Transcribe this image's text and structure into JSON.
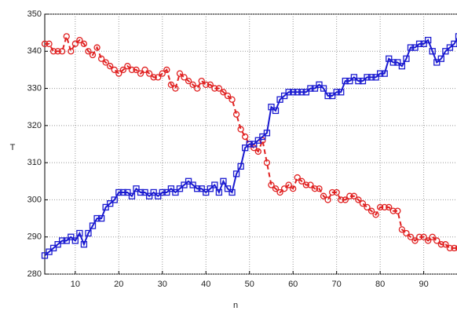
{
  "chart_data": {
    "type": "line",
    "xlabel": "n",
    "ylabel": "T",
    "x": [
      3,
      4,
      5,
      6,
      7,
      8,
      9,
      10,
      11,
      12,
      13,
      14,
      15,
      16,
      17,
      18,
      19,
      20,
      21,
      22,
      23,
      24,
      25,
      26,
      27,
      28,
      29,
      30,
      31,
      32,
      33,
      34,
      35,
      36,
      37,
      38,
      39,
      40,
      41,
      42,
      43,
      44,
      45,
      46,
      47,
      48,
      49,
      50,
      51,
      52,
      53,
      54,
      55,
      56,
      57,
      58,
      59,
      60,
      61,
      62,
      63,
      64,
      65,
      66,
      67,
      68,
      69,
      70,
      71,
      72,
      73,
      74,
      75,
      76,
      77,
      78,
      79,
      80,
      81,
      82,
      83,
      84,
      85,
      86,
      87,
      88,
      89,
      90,
      91,
      92,
      93,
      94,
      95,
      96,
      97,
      98
    ],
    "series": [
      {
        "color": "#e02020",
        "line_style": "dashed",
        "marker": "circle",
        "values": [
          342,
          342,
          340,
          340,
          340,
          344,
          340,
          342,
          343,
          342,
          340,
          339,
          341,
          338,
          337,
          336,
          335,
          334,
          335,
          336,
          335,
          335,
          334,
          335,
          334,
          333,
          333,
          334,
          335,
          331,
          330,
          334,
          333,
          332,
          331,
          330,
          332,
          331,
          331,
          330,
          330,
          329,
          328,
          327,
          323,
          319,
          317,
          315,
          314,
          313,
          316,
          310,
          304,
          303,
          302,
          303,
          304,
          303,
          306,
          305,
          304,
          304,
          303,
          303,
          301,
          300,
          302,
          302,
          300,
          300,
          301,
          301,
          300,
          299,
          298,
          297,
          296,
          298,
          298,
          298,
          297,
          297,
          292,
          291,
          290,
          289,
          290,
          290,
          289,
          290,
          289,
          288,
          288,
          287,
          287,
          287
        ]
      },
      {
        "color": "#1a1ad0",
        "line_style": "solid",
        "marker": "square",
        "values": [
          285,
          286,
          287,
          288,
          289,
          289,
          290,
          289,
          291,
          288,
          291,
          293,
          295,
          295,
          298,
          299,
          300,
          302,
          302,
          302,
          301,
          303,
          302,
          302,
          301,
          302,
          301,
          302,
          302,
          303,
          302,
          303,
          304,
          305,
          304,
          303,
          303,
          302,
          303,
          304,
          302,
          305,
          303,
          302,
          307,
          309,
          314,
          315,
          315,
          316,
          317,
          318,
          325,
          324,
          327,
          328,
          329,
          329,
          329,
          329,
          329,
          330,
          330,
          331,
          330,
          328,
          328,
          329,
          329,
          332,
          332,
          333,
          332,
          332,
          333,
          333,
          333,
          334,
          334,
          338,
          337,
          337,
          336,
          338,
          341,
          341,
          342,
          342,
          343,
          340,
          337,
          338,
          340,
          341,
          342,
          344
        ]
      }
    ],
    "xlim": [
      3,
      98
    ],
    "ylim": [
      280,
      350
    ],
    "xticks": [
      10,
      20,
      30,
      40,
      50,
      60,
      70,
      80,
      90
    ],
    "yticks": [
      280,
      290,
      300,
      310,
      320,
      330,
      340,
      350
    ],
    "grid": true
  }
}
